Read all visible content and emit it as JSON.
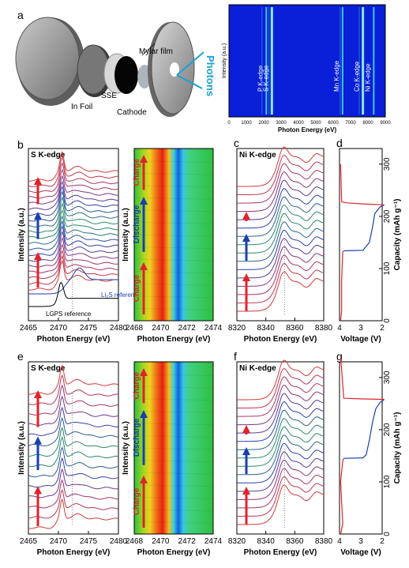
{
  "panel_letters": {
    "a": "a",
    "b": "b",
    "c": "c",
    "d": "d",
    "e": "e",
    "f": "f",
    "g": "g"
  },
  "cell": {
    "parts": {
      "in_foil": "In Foil",
      "sse": "SSE",
      "mylar": "Mylar film",
      "cathode": "Cathode",
      "photons": "Photons"
    }
  },
  "colors": {
    "charge": "#e0232b",
    "discharge": "#1a3fb0",
    "map_bg": "#0a1fd8",
    "axis": "#000000"
  },
  "chart_data": [
    {
      "id": "a-edge-map",
      "type": "heatmap",
      "xlabel": "Photon Energy (eV)",
      "ylabel": "Intensity (a.u.)",
      "xlim": [
        0,
        9000
      ],
      "xticks": [
        0,
        1000,
        2000,
        3000,
        4000,
        5000,
        6000,
        7000,
        8000,
        9000
      ],
      "edges": [
        {
          "name": "P K-edge",
          "x": 2150
        },
        {
          "name": "S K-edge",
          "x": 2470
        },
        {
          "name": "Mn K-edge",
          "x": 6540
        },
        {
          "name": "Co K-edge",
          "x": 7710
        },
        {
          "name": "Ni K-edge",
          "x": 8333
        }
      ]
    },
    {
      "id": "b-s-xanes",
      "type": "line",
      "title": "S K-edge",
      "xlabel": "Photon Energy (eV)",
      "ylabel": "Intensity (a.u.)",
      "xlim": [
        2465,
        2480
      ],
      "xticks": [
        2465,
        2470,
        2475,
        2480
      ],
      "n_spectra": 20,
      "references": [
        {
          "name": "Li₂S reference"
        },
        {
          "name": "LGPS reference"
        }
      ]
    },
    {
      "id": "b-map",
      "type": "heatmap",
      "xlabel": "Photon Energy (eV)",
      "ylabel": "Intensity (a.u.)",
      "xlim": [
        2468,
        2474
      ],
      "xticks": [
        2468,
        2470,
        2472,
        2474
      ],
      "segments": [
        "Charge",
        "Discharge",
        "Charge"
      ]
    },
    {
      "id": "c-ni-xanes",
      "type": "line",
      "title": "Ni K-edge",
      "xlabel": "Photon Energy (eV)",
      "xlim": [
        8320,
        8380
      ],
      "xticks": [
        8320,
        8340,
        8360,
        8380
      ],
      "n_spectra": 16
    },
    {
      "id": "d-voltage",
      "type": "line",
      "xlabel": "Voltage (V)",
      "ylabel": "Capacity (mAh g⁻¹)",
      "xlim": [
        4,
        2
      ],
      "xticks": [
        4,
        3,
        2
      ],
      "ylim": [
        0,
        330
      ],
      "yticks": [
        0,
        100,
        200,
        300
      ],
      "series": [
        {
          "name": "charge",
          "points": [
            [
              3.95,
              0
            ],
            [
              3.9,
              20
            ],
            [
              3.9,
              80
            ],
            [
              3.85,
              132
            ],
            [
              3.8,
              134
            ]
          ]
        },
        {
          "name": "discharge",
          "points": [
            [
              3.8,
              134
            ],
            [
              2.9,
              135
            ],
            [
              2.8,
              140
            ],
            [
              2.6,
              150
            ],
            [
              2.45,
              180
            ],
            [
              2.35,
              205
            ],
            [
              2.1,
              218
            ],
            [
              1.9,
              222
            ]
          ]
        },
        {
          "name": "charge",
          "points": [
            [
              1.9,
              222
            ],
            [
              3.0,
              224
            ],
            [
              3.7,
              226
            ],
            [
              3.9,
              228
            ],
            [
              3.95,
              300
            ]
          ]
        }
      ]
    },
    {
      "id": "e-s-xanes",
      "type": "line",
      "title": "S K-edge",
      "xlabel": "Photon Energy (eV)",
      "ylabel": "Intensity (a.u.)",
      "xlim": [
        2465,
        2480
      ],
      "xticks": [
        2465,
        2470,
        2475,
        2480
      ],
      "n_spectra": 14
    },
    {
      "id": "e-map",
      "type": "heatmap",
      "xlabel": "Photon Energy (eV)",
      "ylabel": "Intensity (a.u.)",
      "xlim": [
        2468,
        2474
      ],
      "xticks": [
        2468,
        2470,
        2472,
        2474
      ],
      "segments": [
        "Charge",
        "Discharge",
        "Charge"
      ]
    },
    {
      "id": "f-ni-xanes",
      "type": "line",
      "title": "Ni K-edge",
      "xlabel": "Photon Energy (eV)",
      "xlim": [
        8320,
        8380
      ],
      "xticks": [
        8320,
        8340,
        8360,
        8380
      ],
      "n_spectra": 16
    },
    {
      "id": "g-voltage",
      "type": "line",
      "xlabel": "Voltage (V)",
      "ylabel": "Capacity (mAh g⁻¹)",
      "xlim": [
        4,
        2
      ],
      "xticks": [
        4,
        3,
        2
      ],
      "ylim": [
        0,
        330
      ],
      "yticks": [
        0,
        100,
        200,
        300
      ],
      "series": [
        {
          "name": "charge",
          "points": [
            [
              3.95,
              0
            ],
            [
              3.85,
              20
            ],
            [
              3.9,
              60
            ],
            [
              3.95,
              100
            ],
            [
              3.85,
              140
            ],
            [
              3.8,
              145
            ]
          ]
        },
        {
          "name": "discharge",
          "points": [
            [
              3.8,
              145
            ],
            [
              2.9,
              146
            ],
            [
              2.75,
              152
            ],
            [
              2.6,
              180
            ],
            [
              2.45,
              215
            ],
            [
              2.3,
              240
            ],
            [
              2.1,
              252
            ],
            [
              1.9,
              258
            ]
          ]
        },
        {
          "name": "charge",
          "points": [
            [
              1.9,
              258
            ],
            [
              3.0,
              259
            ],
            [
              3.8,
              260
            ],
            [
              3.95,
              340
            ]
          ]
        }
      ]
    }
  ]
}
